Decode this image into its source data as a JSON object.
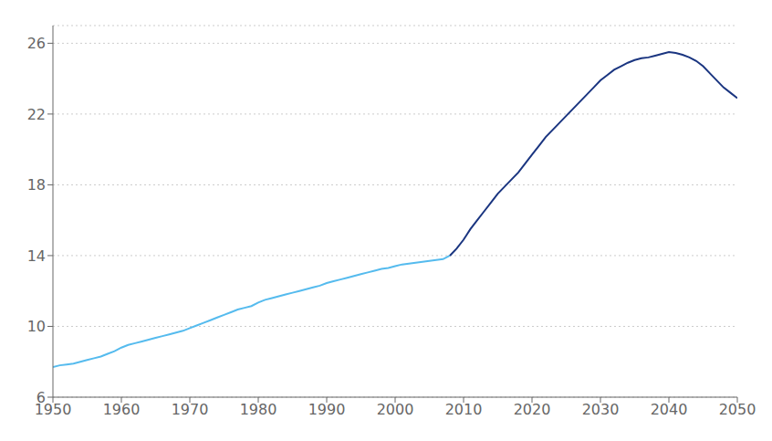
{
  "chart_data": {
    "type": "line",
    "x": [
      1950,
      1951,
      1952,
      1953,
      1954,
      1955,
      1956,
      1957,
      1958,
      1959,
      1960,
      1961,
      1962,
      1963,
      1964,
      1965,
      1966,
      1967,
      1968,
      1969,
      1970,
      1971,
      1972,
      1973,
      1974,
      1975,
      1976,
      1977,
      1978,
      1979,
      1980,
      1981,
      1982,
      1983,
      1984,
      1985,
      1986,
      1987,
      1988,
      1989,
      1990,
      1991,
      1992,
      1993,
      1994,
      1995,
      1996,
      1997,
      1998,
      1999,
      2000,
      2001,
      2002,
      2003,
      2004,
      2005,
      2006,
      2007,
      2008,
      2009,
      2010,
      2011,
      2012,
      2013,
      2014,
      2015,
      2016,
      2017,
      2018,
      2019,
      2020,
      2021,
      2022,
      2023,
      2024,
      2025,
      2026,
      2027,
      2028,
      2029,
      2030,
      2031,
      2032,
      2033,
      2034,
      2035,
      2036,
      2037,
      2038,
      2039,
      2040,
      2041,
      2042,
      2043,
      2044,
      2045,
      2046,
      2047,
      2048,
      2049,
      2050
    ],
    "series": [
      {
        "color": "#55bbee",
        "line_style": "solid",
        "values": [
          7.7,
          7.8,
          7.85,
          7.9,
          8.0,
          8.1,
          8.2,
          8.3,
          8.45,
          8.6,
          8.8,
          8.95,
          9.05,
          9.15,
          9.25,
          9.35,
          9.45,
          9.55,
          9.65,
          9.75,
          9.9,
          10.05,
          10.2,
          10.35,
          10.5,
          10.65,
          10.8,
          10.95,
          11.05,
          11.15,
          11.35,
          11.5,
          11.6,
          11.7,
          11.8,
          11.9,
          12.0,
          12.1,
          12.2,
          12.3,
          12.45,
          12.55,
          12.65,
          12.75,
          12.85,
          12.95,
          13.05,
          13.15,
          13.25,
          13.3,
          13.4,
          13.5,
          13.55,
          13.6,
          13.65,
          13.7,
          13.75,
          13.8,
          14.0,
          null,
          null,
          null,
          null,
          null,
          null,
          null,
          null,
          null,
          null,
          null,
          null,
          null,
          null,
          null,
          null,
          null,
          null,
          null,
          null,
          null,
          null,
          null,
          null,
          null,
          null,
          null,
          null,
          null,
          null,
          null,
          null,
          null,
          null,
          null,
          null,
          null,
          null,
          null,
          null,
          null,
          null
        ]
      },
      {
        "color": "#1a3580",
        "line_style": "solid",
        "values": [
          null,
          null,
          null,
          null,
          null,
          null,
          null,
          null,
          null,
          null,
          null,
          null,
          null,
          null,
          null,
          null,
          null,
          null,
          null,
          null,
          null,
          null,
          null,
          null,
          null,
          null,
          null,
          null,
          null,
          null,
          null,
          null,
          null,
          null,
          null,
          null,
          null,
          null,
          null,
          null,
          null,
          null,
          null,
          null,
          null,
          null,
          null,
          null,
          null,
          null,
          null,
          null,
          null,
          null,
          null,
          null,
          null,
          null,
          14.0,
          14.4,
          14.9,
          15.5,
          16.0,
          16.5,
          17.0,
          17.5,
          17.9,
          18.3,
          18.7,
          19.2,
          19.7,
          20.2,
          20.7,
          21.1,
          21.5,
          21.9,
          22.3,
          22.7,
          23.1,
          23.5,
          23.9,
          24.2,
          24.5,
          24.7,
          24.9,
          25.05,
          25.15,
          25.2,
          25.3,
          25.4,
          25.5,
          25.45,
          25.35,
          25.2,
          25.0,
          24.7,
          24.3,
          23.9,
          23.5,
          23.2,
          22.9
        ]
      }
    ],
    "xlim": [
      1950,
      2050
    ],
    "xticks": [
      1950,
      1960,
      1970,
      1980,
      1990,
      2000,
      2010,
      2020,
      2030,
      2040,
      2050
    ],
    "ylim": [
      6,
      27
    ],
    "yticks": [
      6,
      10,
      14,
      18,
      22,
      26
    ],
    "grid": true
  }
}
